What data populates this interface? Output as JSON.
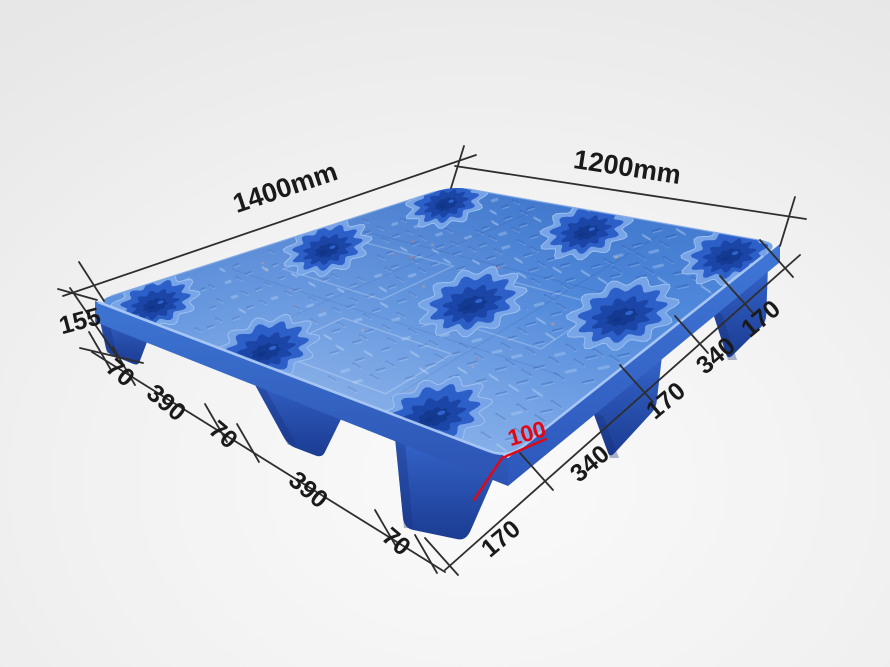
{
  "image": {
    "description": "Blue nestable thermoformed plastic pallet shown in perspective with dimension annotations",
    "background_color": "#efefef"
  },
  "pallet": {
    "body_color": "#4f88da",
    "cup_count": 9,
    "visible_feet": 5,
    "deck_pattern": "diamond-plate"
  },
  "dimensions": {
    "length_label": "1400mm",
    "width_label": "1200mm",
    "overall_height_label": "155",
    "foot_height_label": "100",
    "foot_height_color": "#e30613",
    "left_edge_segments": [
      "70",
      "390",
      "70",
      "390",
      "70"
    ],
    "right_edge_segments": [
      "170",
      "340",
      "170",
      "340",
      "170"
    ],
    "line_color": "#2e2e2e"
  }
}
